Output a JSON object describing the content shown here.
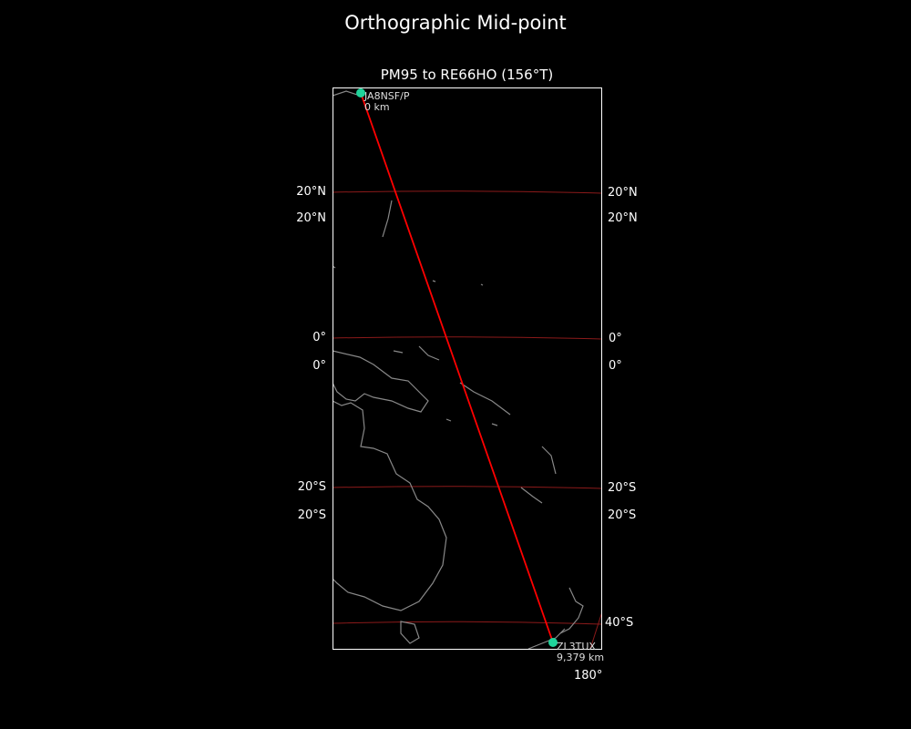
{
  "figure_title": "Orthographic Mid-point",
  "map_title": "PM95 to RE66HO (156°T)",
  "projection": "orthographic",
  "colors": {
    "background": "#000000",
    "path": "#ff0000",
    "gridlines": "#8b1a1a",
    "coastline": "#888888",
    "station_marker": "#1fd39a",
    "frame": "#ffffff"
  },
  "gridline_labels": {
    "left": [
      "20°N",
      "20°N",
      "0°",
      "0°",
      "20°S",
      "20°S"
    ],
    "right": [
      "20°N",
      "20°N",
      "0°",
      "0°",
      "20°S",
      "20°S",
      "40°S"
    ],
    "bottom": [
      "180°"
    ]
  },
  "stations": [
    {
      "call": "JA8NSF/P",
      "distance": "0 km",
      "lat": 43,
      "lon": 141
    },
    {
      "call": "ZL3TUX",
      "distance": "9,379 km",
      "lat": -43.5,
      "lon": 172.6
    }
  ]
}
